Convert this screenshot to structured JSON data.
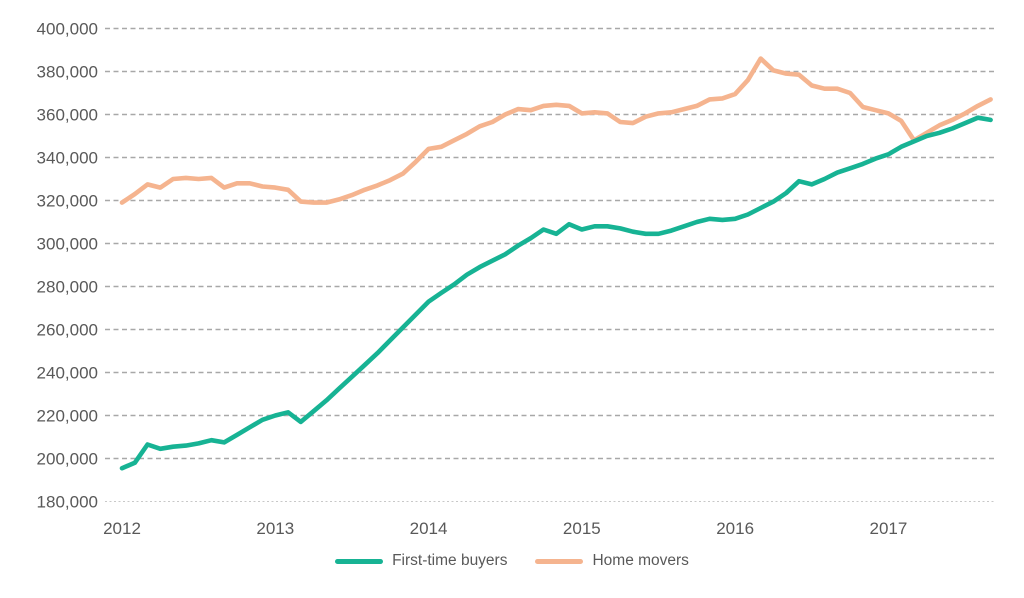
{
  "chart_data": {
    "type": "line",
    "title": "",
    "xlabel": "",
    "ylabel": "",
    "frequency": "monthly",
    "x_tick_labels": [
      "2012",
      "2013",
      "2014",
      "2015",
      "2016",
      "2017"
    ],
    "ytick_labels": [
      "180,000",
      "200,000",
      "220,000",
      "240,000",
      "260,000",
      "280,000",
      "300,000",
      "320,000",
      "340,000",
      "360,000",
      "380,000",
      "400,000"
    ],
    "ylim": [
      180000,
      400000
    ],
    "ytick_step": 20000,
    "grid": "horizontal-dashed",
    "legend_position": "bottom",
    "series": [
      {
        "name": "First-time buyers",
        "color": "#17b394",
        "values": [
          195500,
          198000,
          206500,
          204500,
          205500,
          206000,
          207000,
          208500,
          207500,
          211000,
          214500,
          218000,
          220000,
          221500,
          217000,
          222000,
          227000,
          232500,
          238000,
          243500,
          249000,
          255000,
          261000,
          267000,
          273000,
          277000,
          281000,
          285500,
          289000,
          292000,
          295000,
          299000,
          302500,
          306500,
          304500,
          309000,
          306500,
          308000,
          308000,
          307000,
          305500,
          304500,
          304500,
          306000,
          308000,
          310000,
          311500,
          311000,
          311500,
          313500,
          316500,
          319500,
          323500,
          329000,
          327500,
          330000,
          333000,
          335000,
          337000,
          339500,
          341500,
          345000,
          347500,
          350000,
          351500,
          353500,
          356000,
          358500,
          357500
        ]
      },
      {
        "name": "Home movers",
        "color": "#f5b48f",
        "values": [
          319000,
          323000,
          327500,
          326000,
          330000,
          330500,
          330000,
          330500,
          326000,
          328000,
          328000,
          326500,
          326000,
          325000,
          319500,
          319000,
          319000,
          320500,
          322500,
          325000,
          327000,
          329500,
          332500,
          338000,
          344000,
          345000,
          348000,
          351000,
          354500,
          356500,
          360000,
          362500,
          362000,
          364000,
          364500,
          364000,
          360500,
          361000,
          360500,
          356500,
          356000,
          359000,
          360500,
          361000,
          362500,
          364000,
          367000,
          367500,
          369500,
          376000,
          386000,
          380500,
          379000,
          378500,
          373500,
          372000,
          372000,
          370000,
          363500,
          362000,
          360500,
          357000,
          348000,
          351500,
          355000,
          357500,
          360500,
          364000,
          367000
        ]
      }
    ]
  }
}
